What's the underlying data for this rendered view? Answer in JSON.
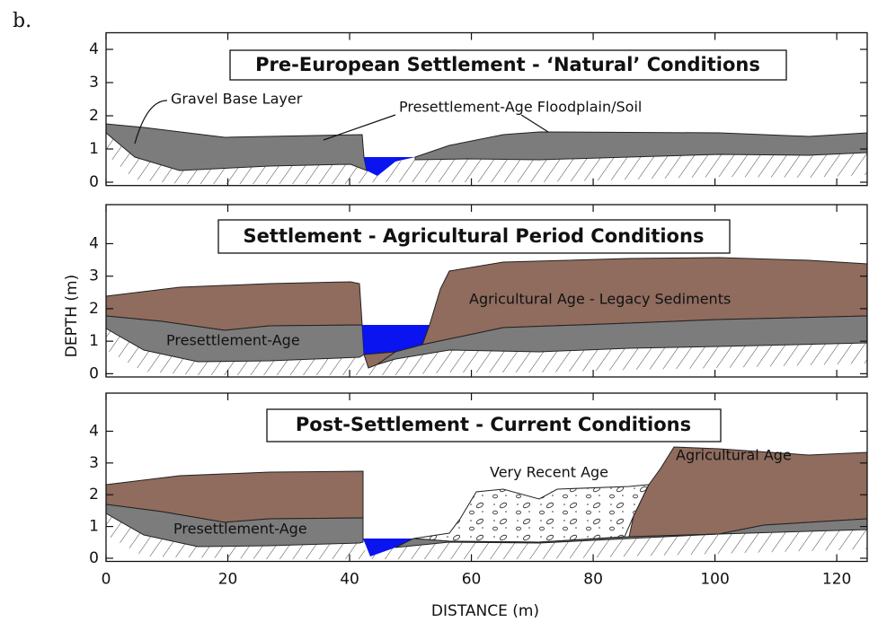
{
  "figure_label": "b.",
  "ylabel": "DEPTH (m)",
  "xlabel": "DISTANCE (m)",
  "xlim": [
    0,
    125
  ],
  "xticks": [
    0,
    20,
    40,
    60,
    80,
    100,
    120
  ],
  "chart_data": [
    {
      "type": "cross-section",
      "title": "Pre-European Settlement - ‘Natural’ Conditions",
      "labels": [
        "Gravel Base Layer",
        "Presettlement-Age Floodplain/Soil"
      ],
      "ylim": [
        -0.1,
        4.5
      ],
      "yticks": [
        0,
        1,
        2,
        3,
        4
      ]
    },
    {
      "type": "cross-section",
      "title": "Settlement - Agricultural Period Conditions",
      "labels": [
        "Agricultural Age - Legacy Sediments",
        "Presettlement-Age"
      ],
      "ylim": [
        -0.1,
        5.2
      ],
      "yticks": [
        0,
        1,
        2,
        3,
        4
      ]
    },
    {
      "type": "cross-section",
      "title": "Post-Settlement - Current Conditions",
      "labels": [
        "Very Recent Age",
        "Agricultural Age",
        "Presettlement-Age"
      ],
      "ylim": [
        -0.1,
        5.2
      ],
      "yticks": [
        0,
        1,
        2,
        3,
        4
      ]
    }
  ]
}
